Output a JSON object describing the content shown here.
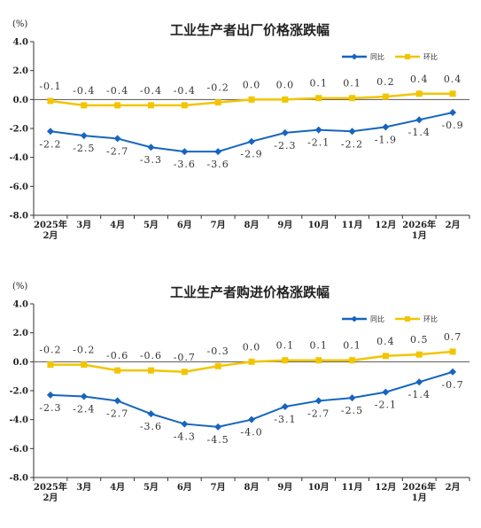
{
  "colors": {
    "yoy": "#1565c0",
    "mom": "#f2c500",
    "axis": "#333333",
    "grid": "#555555"
  },
  "chart_data": [
    {
      "type": "line",
      "title": "工业生产者出厂价格涨跌幅",
      "unit": "(%)",
      "ylim": [
        -8.0,
        4.0
      ],
      "yticks": [
        "4.0",
        "2.0",
        "0.0",
        "-2.0",
        "-4.0",
        "-6.0",
        "-8.0"
      ],
      "categories": [
        [
          "2025年",
          "2月"
        ],
        [
          "3月"
        ],
        [
          "4月"
        ],
        [
          "5月"
        ],
        [
          "6月"
        ],
        [
          "7月"
        ],
        [
          "8月"
        ],
        [
          "9月"
        ],
        [
          "10月"
        ],
        [
          "11月"
        ],
        [
          "12月"
        ],
        [
          "2026年",
          "1月"
        ],
        [
          "2月"
        ]
      ],
      "legend": {
        "placement": "top-right",
        "entries": [
          "同比",
          "环比"
        ]
      },
      "series": [
        {
          "name": "同比",
          "color_key": "yoy",
          "values": [
            -2.2,
            -2.5,
            -2.7,
            -3.3,
            -3.6,
            -3.6,
            -2.9,
            -2.3,
            -2.1,
            -2.2,
            -1.9,
            -1.4,
            -0.9
          ],
          "labels": [
            "-2.2",
            "-2.5",
            "-2.7",
            "-3.3",
            "-3.6",
            "-3.6",
            "-2.9",
            "-2.3",
            "-2.1",
            "-2.2",
            "-1.9",
            "-1.4",
            "-0.9"
          ]
        },
        {
          "name": "环比",
          "color_key": "mom",
          "values": [
            -0.1,
            -0.4,
            -0.4,
            -0.4,
            -0.4,
            -0.2,
            0.0,
            0.0,
            0.1,
            0.1,
            0.2,
            0.4,
            0.4
          ],
          "labels": [
            "-0.1",
            "-0.4",
            "-0.4",
            "-0.4",
            "-0.4",
            "-0.2",
            "0.0",
            "0.0",
            "0.1",
            "0.1",
            "0.2",
            "0.4",
            "0.4"
          ]
        }
      ]
    },
    {
      "type": "line",
      "title": "工业生产者购进价格涨跌幅",
      "unit": "(%)",
      "ylim": [
        -8.0,
        4.0
      ],
      "yticks": [
        "4.0",
        "2.0",
        "0.0",
        "-2.0",
        "-4.0",
        "-6.0",
        "-8.0"
      ],
      "categories": [
        [
          "2025年",
          "2月"
        ],
        [
          "3月"
        ],
        [
          "4月"
        ],
        [
          "5月"
        ],
        [
          "6月"
        ],
        [
          "7月"
        ],
        [
          "8月"
        ],
        [
          "9月"
        ],
        [
          "10月"
        ],
        [
          "11月"
        ],
        [
          "12月"
        ],
        [
          "2026年",
          "1月"
        ],
        [
          "2月"
        ]
      ],
      "legend": {
        "placement": "top-right",
        "entries": [
          "同比",
          "环比"
        ]
      },
      "series": [
        {
          "name": "同比",
          "color_key": "yoy",
          "values": [
            -2.3,
            -2.4,
            -2.7,
            -3.6,
            -4.3,
            -4.5,
            -4.0,
            -3.1,
            -2.7,
            -2.5,
            -2.1,
            -1.4,
            -0.7
          ],
          "labels": [
            "-2.3",
            "-2.4",
            "-2.7",
            "-3.6",
            "-4.3",
            "-4.5",
            "-4.0",
            "-3.1",
            "-2.7",
            "-2.5",
            "-2.1",
            "-1.4",
            "-0.7"
          ]
        },
        {
          "name": "环比",
          "color_key": "mom",
          "values": [
            -0.2,
            -0.2,
            -0.6,
            -0.6,
            -0.7,
            -0.3,
            0.0,
            0.1,
            0.1,
            0.1,
            0.4,
            0.5,
            0.7
          ],
          "labels": [
            "-0.2",
            "-0.2",
            "-0.6",
            "-0.6",
            "-0.7",
            "-0.3",
            "0.0",
            "0.1",
            "0.1",
            "0.1",
            "0.4",
            "0.5",
            "0.7"
          ]
        }
      ]
    }
  ]
}
